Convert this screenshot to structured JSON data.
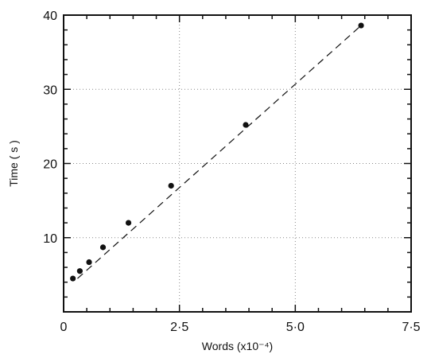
{
  "chart_data": {
    "type": "scatter",
    "title": "",
    "xlabel": "Words (x10⁻⁴)",
    "ylabel": "Time ( s )",
    "xlim": [
      0,
      7.5
    ],
    "ylim": [
      0,
      40
    ],
    "xticks": [
      0,
      2.5,
      5.0,
      7.5
    ],
    "xtick_labels": [
      "0",
      "2·5",
      "5·0",
      "7·5"
    ],
    "yticks": [
      10,
      20,
      30,
      40
    ],
    "ytick_labels": [
      "10",
      "20",
      "30",
      "40"
    ],
    "grid": "dotted, at major ticks",
    "points": [
      {
        "x": 0.2,
        "y": 4.5
      },
      {
        "x": 0.35,
        "y": 5.5
      },
      {
        "x": 0.55,
        "y": 6.7
      },
      {
        "x": 0.85,
        "y": 8.7
      },
      {
        "x": 1.4,
        "y": 12.0
      },
      {
        "x": 2.32,
        "y": 17.0
      },
      {
        "x": 3.93,
        "y": 25.2
      },
      {
        "x": 6.42,
        "y": 38.6
      }
    ],
    "fit_line": {
      "style": "dashed",
      "from": {
        "x": 0.3,
        "y": 4.5
      },
      "to": {
        "x": 6.42,
        "y": 38.6
      }
    }
  }
}
